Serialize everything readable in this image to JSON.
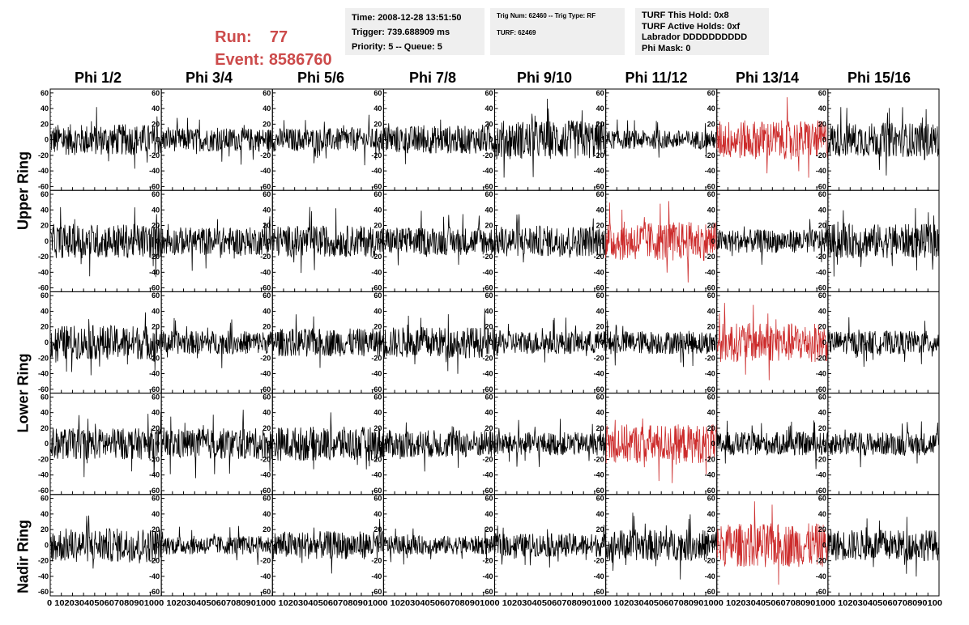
{
  "header": {
    "run_label": "Run:",
    "run_value": "77",
    "event_label": "Event:",
    "event_value": "8586760"
  },
  "info_time": {
    "time": "Time: 2008-12-28 13:51:50",
    "trigger": "Trigger: 739.688909 ms",
    "priority": "Priority: 5 -- Queue: 5"
  },
  "info_trig": {
    "trig": "Trig Num: 62460 -- Trig Type: RF",
    "turf": "TURF: 62469"
  },
  "info_turf": {
    "this_hold": "TURF This Hold: 0x8",
    "active_holds": "TURF Active Holds: 0xf",
    "labrador": "Labrador DDDDDDDDDD",
    "phi_mask": "Phi Mask: 0"
  },
  "columns": [
    "Phi 1/2",
    "Phi 3/4",
    "Phi 5/6",
    "Phi 7/8",
    "Phi 9/10",
    "Phi 11/12",
    "Phi 13/14",
    "Phi 15/16"
  ],
  "ring_labels": [
    "Upper Ring",
    "Lower Ring",
    "Nadir Ring"
  ],
  "colors": {
    "normal_trace": "#000000",
    "highlight_trace": "#cc2b2b",
    "frame": "#000000"
  },
  "chart_data": {
    "type": "line",
    "layout": "grid of 5 rows x 8 columns of waveform panels",
    "ylim": [
      -65,
      65
    ],
    "xlim": [
      0,
      100
    ],
    "y_ticks": [
      60,
      40,
      20,
      0,
      -20,
      -40,
      -60
    ],
    "x_ticks": [
      0,
      10,
      20,
      30,
      40,
      50,
      60,
      70,
      80,
      90,
      100
    ],
    "x_tick_labels": "0 102030405060708090100",
    "highlighted_panels": [
      {
        "row": 0,
        "col": 6
      },
      {
        "row": 1,
        "col": 5
      },
      {
        "row": 2,
        "col": 6
      },
      {
        "row": 3,
        "col": 5
      },
      {
        "row": 4,
        "col": 6
      }
    ],
    "approx_amplitude": [
      [
        20,
        15,
        15,
        18,
        25,
        12,
        25,
        22
      ],
      [
        22,
        18,
        20,
        18,
        20,
        25,
        15,
        22
      ],
      [
        22,
        15,
        18,
        20,
        15,
        15,
        25,
        15
      ],
      [
        20,
        20,
        22,
        18,
        15,
        25,
        15,
        15
      ],
      [
        22,
        12,
        18,
        12,
        15,
        20,
        28,
        20
      ]
    ]
  }
}
